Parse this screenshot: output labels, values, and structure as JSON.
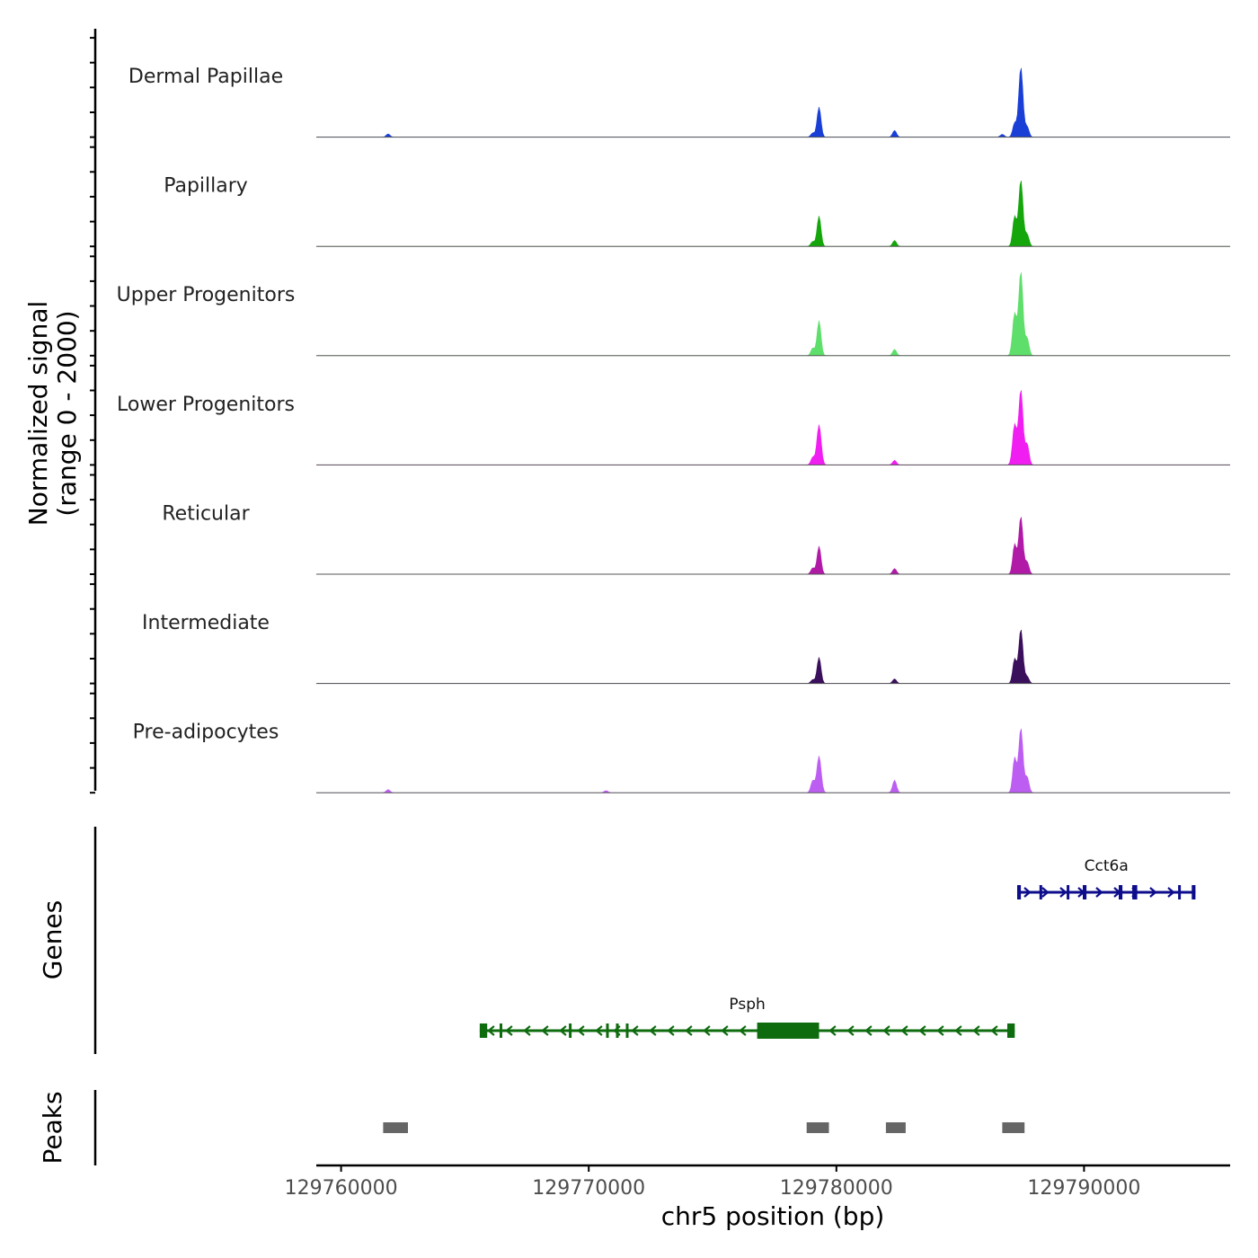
{
  "chart_data": {
    "type": "area",
    "region": "chr5",
    "x_unit": "bp",
    "xlim": [
      129759000,
      129795900
    ],
    "xticks": [
      129760000,
      129770000,
      129780000,
      129790000
    ],
    "xtick_labels": [
      "129760000",
      "129770000",
      "129780000",
      "129790000"
    ],
    "xlabel": "chr5 position (bp)",
    "ylabel_line1": "Normalized signal",
    "ylabel_line2": "(range 0 - 2000)",
    "ylim": [
      0,
      2000
    ],
    "genes_label": "Genes",
    "peaks_label": "Peaks",
    "tracks": [
      {
        "name": "Dermal Papillae",
        "color": "#1a3fd6",
        "peaks": [
          [
            129761900,
            90
          ],
          [
            129779300,
            860
          ],
          [
            129779050,
            120
          ],
          [
            129782350,
            190
          ],
          [
            129787200,
            400
          ],
          [
            129787450,
            2000
          ],
          [
            129787700,
            300
          ],
          [
            129786700,
            80
          ]
        ]
      },
      {
        "name": "Papillary",
        "color": "#14a60b",
        "peaks": [
          [
            129779300,
            870
          ],
          [
            129779050,
            140
          ],
          [
            129782350,
            170
          ],
          [
            129787200,
            850
          ],
          [
            129787450,
            1900
          ],
          [
            129787700,
            350
          ]
        ]
      },
      {
        "name": "Upper Progenitors",
        "color": "#5ede6a",
        "peaks": [
          [
            129779300,
            1000
          ],
          [
            129779050,
            220
          ],
          [
            129782350,
            180
          ],
          [
            129787200,
            1200
          ],
          [
            129787450,
            2400
          ],
          [
            129787700,
            500
          ]
        ]
      },
      {
        "name": "Lower Progenitors",
        "color": "#f01ef0",
        "peaks": [
          [
            129779300,
            1150
          ],
          [
            129779050,
            220
          ],
          [
            129782350,
            130
          ],
          [
            129787200,
            1150
          ],
          [
            129787450,
            2150
          ],
          [
            129787700,
            600
          ]
        ]
      },
      {
        "name": "Reticular",
        "color": "#b01aa6",
        "peaks": [
          [
            129779300,
            800
          ],
          [
            129779050,
            180
          ],
          [
            129782350,
            160
          ],
          [
            129787200,
            850
          ],
          [
            129787450,
            1650
          ],
          [
            129787700,
            350
          ]
        ]
      },
      {
        "name": "Intermediate",
        "color": "#3a0f5c",
        "peaks": [
          [
            129779300,
            750
          ],
          [
            129779050,
            110
          ],
          [
            129782350,
            130
          ],
          [
            129787200,
            700
          ],
          [
            129787450,
            1550
          ],
          [
            129787700,
            200
          ]
        ]
      },
      {
        "name": "Pre-adipocytes",
        "color": "#bd5ef2",
        "peaks": [
          [
            129761900,
            90
          ],
          [
            129770700,
            60
          ],
          [
            129779300,
            1050
          ],
          [
            129779050,
            350
          ],
          [
            129782350,
            360
          ],
          [
            129787200,
            1000
          ],
          [
            129787450,
            1850
          ],
          [
            129787700,
            450
          ]
        ]
      }
    ],
    "genes": [
      {
        "name": "Cct6a",
        "color": "#0d0d8c",
        "strand": "+",
        "start": 129787300,
        "end": 129794500,
        "exons": [
          [
            129787300,
            129787450
          ],
          [
            129788200,
            129788280
          ],
          [
            129789300,
            129789400
          ],
          [
            129789950,
            129790100
          ],
          [
            129791400,
            129791550
          ],
          [
            129791950,
            129792150
          ],
          [
            129793800,
            129793880
          ],
          [
            129794350,
            129794500
          ]
        ]
      },
      {
        "name": "Psph",
        "color": "#0e6b0e",
        "strand": "-",
        "start": 129765600,
        "end": 129787200,
        "exons": [
          [
            129765600,
            129765900
          ],
          [
            129766400,
            129766450
          ],
          [
            129769200,
            129769280
          ],
          [
            129770700,
            129770800
          ],
          [
            129771100,
            129771200
          ],
          [
            129771500,
            129771600
          ],
          [
            129776800,
            129779300
          ],
          [
            129786900,
            129787200
          ]
        ]
      }
    ],
    "peak_regions": [
      [
        129761700,
        129762700
      ],
      [
        129778800,
        129779700
      ],
      [
        129782000,
        129782800
      ],
      [
        129786700,
        129787600
      ]
    ]
  }
}
